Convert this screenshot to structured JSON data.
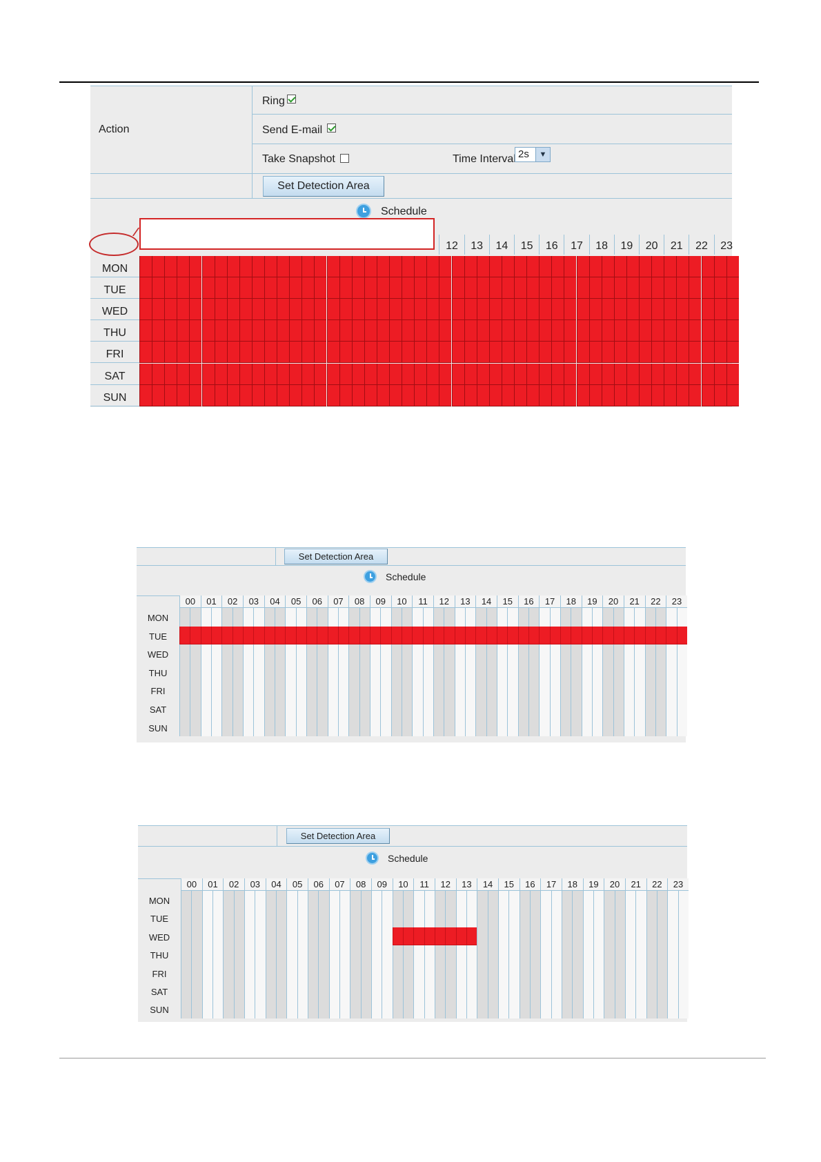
{
  "panel1": {
    "action": {
      "label": "Action",
      "ring_label": "Ring",
      "ring_checked": true,
      "send_email_label": "Send E-mail",
      "send_email_checked": true,
      "take_snapshot_label": "Take Snapshot",
      "take_snapshot_checked": false,
      "time_interval_label": "Time Interval",
      "time_interval_value": "2s"
    },
    "set_detection_area_label": "Set Detection Area",
    "schedule_label": "Schedule",
    "visible_hours": [
      "12",
      "13",
      "14",
      "15",
      "16",
      "17",
      "18",
      "19",
      "20",
      "21",
      "22",
      "23"
    ],
    "days": [
      "MON",
      "TUE",
      "WED",
      "THU",
      "FRI",
      "SAT",
      "SUN"
    ],
    "selection": "all",
    "callout_text": ""
  },
  "panel2": {
    "set_detection_area_label": "Set Detection Area",
    "schedule_label": "Schedule",
    "hours": [
      "00",
      "01",
      "02",
      "03",
      "04",
      "05",
      "06",
      "07",
      "08",
      "09",
      "10",
      "11",
      "12",
      "13",
      "14",
      "15",
      "16",
      "17",
      "18",
      "19",
      "20",
      "21",
      "22",
      "23"
    ],
    "days": [
      "MON",
      "TUE",
      "WED",
      "THU",
      "FRI",
      "SAT",
      "SUN"
    ],
    "selected": {
      "day": "TUE",
      "from_half_hour": 0,
      "to_half_hour": 48
    }
  },
  "panel3": {
    "set_detection_area_label": "Set Detection Area",
    "schedule_label": "Schedule",
    "hours": [
      "00",
      "01",
      "02",
      "03",
      "04",
      "05",
      "06",
      "07",
      "08",
      "09",
      "10",
      "11",
      "12",
      "13",
      "14",
      "15",
      "16",
      "17",
      "18",
      "19",
      "20",
      "21",
      "22",
      "23"
    ],
    "days": [
      "MON",
      "TUE",
      "WED",
      "THU",
      "FRI",
      "SAT",
      "SUN"
    ],
    "selected": {
      "day": "WED",
      "from_half_hour": 20,
      "to_half_hour": 28
    }
  },
  "colors": {
    "selected": "#ed1c24",
    "grid_line": "#9cc3d9",
    "panel_bg": "#ececec",
    "cell_light": "#f7f7f7",
    "cell_dark": "#dcdcdc"
  }
}
